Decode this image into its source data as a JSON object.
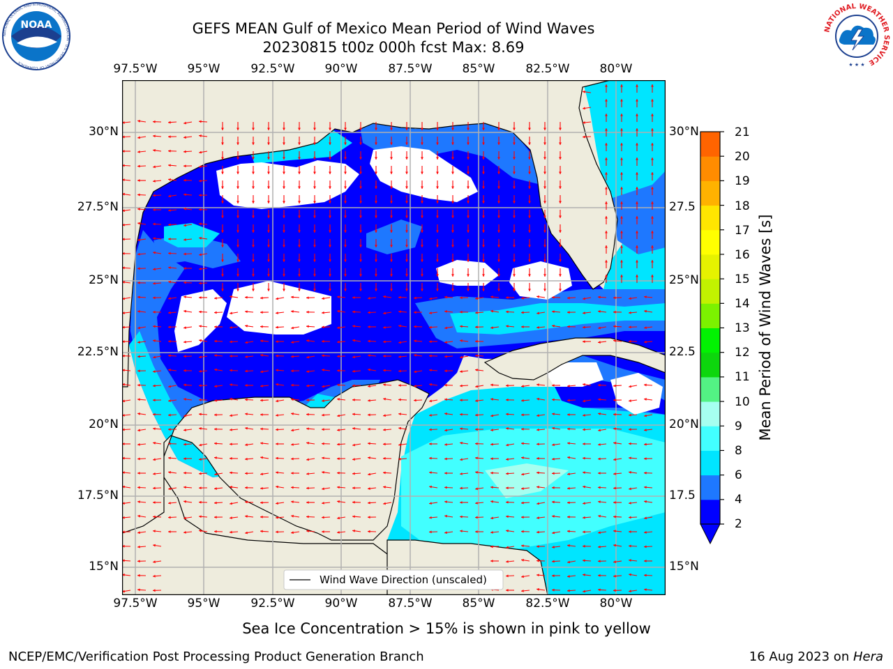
{
  "header": {
    "title_line1": "GEFS MEAN Gulf of Mexico Mean Period of Wind Waves",
    "title_line2": "20230815 t00z 000h fcst   Max: 8.69"
  },
  "logos": {
    "left": {
      "name": "NOAA",
      "text": "NOAA",
      "ring_text": "NATIONAL OCEANIC AND ATMOSPHERIC ADMINISTRATION · U.S. DEPARTMENT OF COMMERCE"
    },
    "right": {
      "name": "National Weather Service",
      "ring_text": "NATIONAL WEATHER SERVICE"
    }
  },
  "map": {
    "lon_labels": [
      "97.5°W",
      "95°W",
      "92.5°W",
      "90°W",
      "87.5°W",
      "85°W",
      "82.5°W",
      "80°W"
    ],
    "lat_labels_left": [
      "30°N",
      "27.5°N",
      "25°N",
      "22.5°N",
      "20°N",
      "17.5°N",
      "15°N"
    ],
    "lat_labels_right": [
      "30°N",
      "27.5",
      "25°N",
      "22.5",
      "20°N",
      "17.5",
      "15°N"
    ],
    "legend_text": "Wind Wave Direction (unscaled)",
    "colors": {
      "land": "#eeecdd",
      "water_none": "#ffffff",
      "coast": "#000000",
      "grid": "#b0b0b0",
      "arrow": "#ff0000"
    }
  },
  "colorbar": {
    "label": "Mean Period of Wind Waves [s]",
    "ticks": [
      "21",
      "20",
      "19",
      "18",
      "17",
      "16",
      "15",
      "14",
      "13",
      "12",
      "11",
      "10",
      "9",
      "8",
      "6",
      "4",
      "2"
    ],
    "bands": [
      "#0000ff",
      "#1e78ff",
      "#00e5ff",
      "#42ffff",
      "#a6fff0",
      "#53f284",
      "#0dd60d",
      "#02f202",
      "#7cf200",
      "#c2f200",
      "#e6f200",
      "#ffff00",
      "#ffe600",
      "#ffb200",
      "#ff8c00",
      "#ff6400",
      "#ff3200",
      "#ff0000"
    ],
    "under_color": "#0000ff"
  },
  "caption": "Sea Ice Concentration > 15% is shown in pink to yellow",
  "footer": {
    "left": "NCEP/EMC/Verification Post Processing Product Generation Branch",
    "right_prefix": "16 Aug 2023 on ",
    "right_machine": "Hera"
  }
}
